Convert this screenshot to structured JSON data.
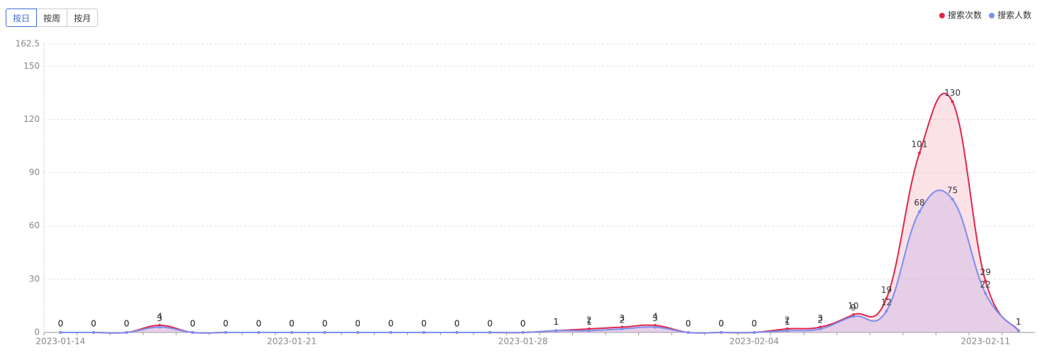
{
  "buttons": [
    "按日",
    "按周",
    "按月"
  ],
  "chart_data": {
    "type": "line",
    "categories": [
      "2023-01-14",
      null,
      null,
      null,
      null,
      null,
      null,
      "2023-01-21",
      null,
      null,
      null,
      null,
      null,
      null,
      "2023-01-28",
      null,
      null,
      null,
      null,
      null,
      null,
      "2023-02-04",
      null,
      null,
      null,
      null,
      null,
      null,
      "2023-02-11",
      null
    ],
    "series": [
      {
        "name": "搜索次数",
        "color": "#e0264a",
        "fill": "rgba(240,140,160,0.25)",
        "values": [
          0,
          0,
          0,
          4,
          0,
          0,
          0,
          0,
          0,
          0,
          0,
          0,
          0,
          0,
          0,
          1,
          2,
          3,
          4,
          0,
          0,
          0,
          2,
          3,
          10,
          19,
          101,
          130,
          29,
          1
        ]
      },
      {
        "name": "搜索人数",
        "color": "#7b8ff0",
        "fill": "rgba(190,170,230,0.35)",
        "values": [
          0,
          0,
          0,
          3,
          0,
          0,
          0,
          0,
          0,
          0,
          0,
          0,
          0,
          0,
          0,
          1,
          1,
          2,
          3,
          0,
          0,
          0,
          1,
          2,
          9,
          12,
          68,
          75,
          22,
          1
        ]
      }
    ],
    "ylim": [
      0,
      162.5
    ],
    "yticks": [
      0,
      30,
      60,
      90,
      120,
      150,
      162.5
    ],
    "grid": true,
    "legend": "top-right"
  }
}
